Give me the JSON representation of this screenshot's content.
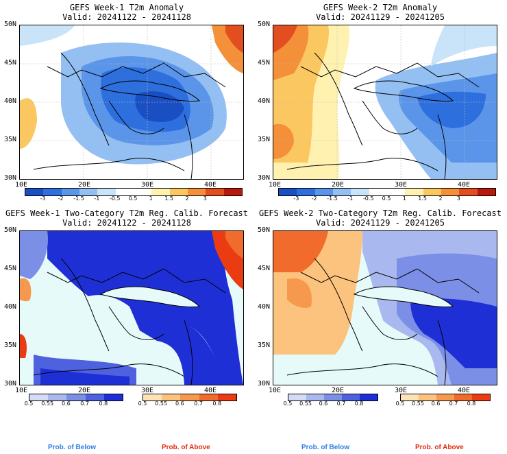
{
  "panels": [
    {
      "id": "anom1",
      "title": "GEFS Week-1 T2m Anomaly",
      "valid": "Valid: 20241122 - 20241128",
      "y_ticks": [
        "50N",
        "45N",
        "40N",
        "35N",
        "30N"
      ],
      "x_ticks": [
        "10E",
        "20E",
        "30E",
        "40E"
      ]
    },
    {
      "id": "anom2",
      "title": "GEFS Week-2 T2m Anomaly",
      "valid": "Valid: 20241129 - 20241205",
      "y_ticks": [
        "50N",
        "45N",
        "40N",
        "35N",
        "30N"
      ],
      "x_ticks": [
        "10E",
        "20E",
        "30E",
        "40E"
      ]
    },
    {
      "id": "prob1",
      "title": "GEFS Week-1 Two-Category T2m Reg. Calib. Forecast",
      "valid": "Valid: 20241122 - 20241128",
      "y_ticks": [
        "50N",
        "45N",
        "40N",
        "35N",
        "30N"
      ],
      "x_ticks": [
        "10E",
        "20E",
        "30E",
        "40E"
      ]
    },
    {
      "id": "prob2",
      "title": "GEFS Week-2 Two-Category T2m Reg. Calib. Forecast",
      "valid": "Valid: 20241129 - 20241205",
      "y_ticks": [
        "50N",
        "45N",
        "40N",
        "35N",
        "30N"
      ],
      "x_ticks": [
        "10E",
        "20E",
        "30E",
        "40E"
      ]
    }
  ],
  "anomaly_colorbar": {
    "colors": [
      "#1a4fc4",
      "#2e6fde",
      "#5a95ea",
      "#93bff2",
      "#c9e3f8",
      "#ffffff",
      "#ffffff",
      "#fff2b0",
      "#fbc761",
      "#f4903a",
      "#e24e1f",
      "#b8180e"
    ],
    "labels": [
      "-3",
      "-2",
      "-1.5",
      "-1",
      "-0.5",
      "0.5",
      "1",
      "1.5",
      "2",
      "3"
    ]
  },
  "prob_below_colorbar": {
    "colors": [
      "#d4dcf5",
      "#a9b8ee",
      "#7c8fe6",
      "#4e62e0",
      "#1f2fd6"
    ],
    "labels": [
      "0.5",
      "0.55",
      "0.6",
      "0.7",
      "0.8"
    ],
    "caption": "Prob. of Below",
    "caption_color": "#2b7ee0"
  },
  "prob_above_colorbar": {
    "colors": [
      "#fde3b6",
      "#fbc37d",
      "#f6994f",
      "#f06b2c",
      "#ea3b12"
    ],
    "labels": [
      "0.5",
      "0.55",
      "0.6",
      "0.7",
      "0.8"
    ],
    "caption": "Prob. of Above",
    "caption_color": "#e02b12"
  }
}
